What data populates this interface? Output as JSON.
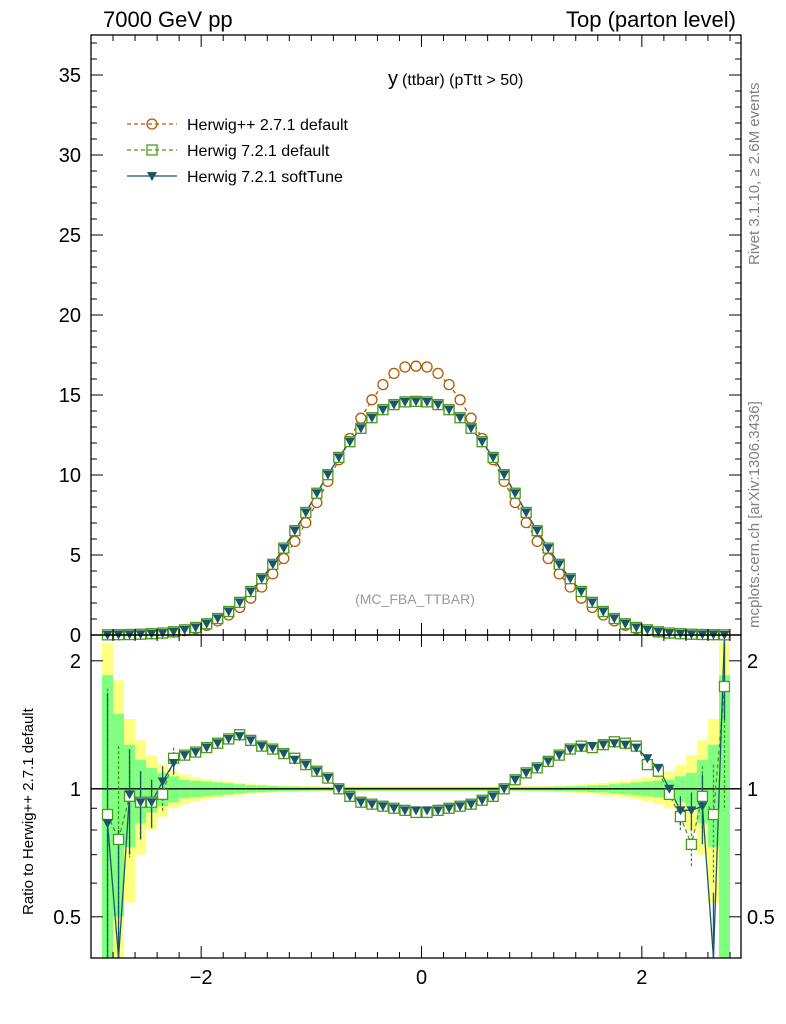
{
  "header": {
    "left": "7000 GeV pp",
    "right": "Top (parton level)"
  },
  "side_labels": {
    "rivet": "Rivet 3.1.10, ≥ 2.6M events",
    "mcplots": "mcplots.cern.ch [arXiv:1306.3436]"
  },
  "chart_data": {
    "type": "line",
    "title_main": "y",
    "title_sub": "(ttbar)  (pTtt > 50)",
    "watermark": "(MC_FBA_TTBAR)",
    "ratio_ylabel": "Ratio to Herwig++ 2.7.1 default",
    "xlim": [
      -3.0,
      2.9
    ],
    "ylim": [
      0,
      37.5
    ],
    "ratio_ylim": [
      0.4,
      2.3
    ],
    "x_ticks": [
      "−2",
      "0",
      "2"
    ],
    "y_ticks": [
      "0",
      "5",
      "10",
      "15",
      "20",
      "25",
      "30",
      "35"
    ],
    "ratio_ticks": [
      "0.5",
      "1",
      "2"
    ],
    "x": [
      -2.85,
      -2.75,
      -2.65,
      -2.55,
      -2.45,
      -2.35,
      -2.25,
      -2.15,
      -2.05,
      -1.95,
      -1.85,
      -1.75,
      -1.65,
      -1.55,
      -1.45,
      -1.35,
      -1.25,
      -1.15,
      -1.05,
      -0.95,
      -0.85,
      -0.75,
      -0.65,
      -0.55,
      -0.45,
      -0.35,
      -0.25,
      -0.15,
      -0.05,
      0.05,
      0.15,
      0.25,
      0.35,
      0.45,
      0.55,
      0.65,
      0.75,
      0.85,
      0.95,
      1.05,
      1.15,
      1.25,
      1.35,
      1.45,
      1.55,
      1.65,
      1.75,
      1.85,
      1.95,
      2.05,
      2.15,
      2.25,
      2.35,
      2.45,
      2.55,
      2.65,
      2.75
    ],
    "series": [
      {
        "name": "Herwig++ 2.7.1 default",
        "color": "#b35900",
        "marker": "circle-open",
        "dashed": true,
        "values": [
          0.01,
          0.02,
          0.03,
          0.05,
          0.08,
          0.12,
          0.18,
          0.27,
          0.4,
          0.6,
          0.88,
          1.25,
          1.72,
          2.3,
          3.0,
          3.82,
          4.78,
          5.85,
          7.02,
          8.28,
          9.6,
          10.95,
          12.28,
          13.55,
          14.7,
          15.65,
          16.35,
          16.75,
          16.8,
          16.75,
          16.35,
          15.65,
          14.7,
          13.55,
          12.28,
          10.95,
          9.6,
          8.28,
          7.02,
          5.85,
          4.78,
          3.82,
          3.0,
          2.3,
          1.72,
          1.25,
          0.88,
          0.6,
          0.4,
          0.27,
          0.18,
          0.12,
          0.08,
          0.05,
          0.03,
          0.02,
          0.01
        ]
      },
      {
        "name": "Herwig 7.2.1 default",
        "color": "#4a9a1a",
        "marker": "square-open",
        "dashed": true,
        "values": [
          0.01,
          0.02,
          0.03,
          0.05,
          0.08,
          0.12,
          0.2,
          0.32,
          0.47,
          0.7,
          1.03,
          1.47,
          2.04,
          2.72,
          3.52,
          4.42,
          5.43,
          6.52,
          7.66,
          8.86,
          10.02,
          11.1,
          12.08,
          12.92,
          13.58,
          14.08,
          14.4,
          14.57,
          14.6,
          14.57,
          14.4,
          14.08,
          13.58,
          12.92,
          12.08,
          11.1,
          10.02,
          8.86,
          7.66,
          6.52,
          5.43,
          4.42,
          3.52,
          2.72,
          2.04,
          1.47,
          1.03,
          0.7,
          0.47,
          0.32,
          0.2,
          0.12,
          0.08,
          0.05,
          0.03,
          0.02,
          0.01
        ]
      },
      {
        "name": "Herwig 7.2.1 softTune",
        "color": "#1b5667",
        "marker": "triangle-down-filled",
        "dashed": false,
        "values": [
          0.01,
          0.02,
          0.03,
          0.05,
          0.08,
          0.12,
          0.2,
          0.32,
          0.47,
          0.7,
          1.03,
          1.47,
          2.04,
          2.72,
          3.52,
          4.42,
          5.43,
          6.52,
          7.66,
          8.86,
          10.02,
          11.1,
          12.08,
          12.92,
          13.58,
          14.08,
          14.4,
          14.57,
          14.6,
          14.57,
          14.4,
          14.08,
          13.58,
          12.92,
          12.08,
          11.1,
          10.02,
          8.86,
          7.66,
          6.52,
          5.43,
          4.42,
          3.52,
          2.72,
          2.04,
          1.47,
          1.03,
          0.7,
          0.47,
          0.32,
          0.2,
          0.12,
          0.08,
          0.05,
          0.03,
          0.02,
          0.01
        ]
      }
    ],
    "ratio": {
      "h7_default": [
        0.87,
        0.76,
        0.96,
        0.93,
        0.93,
        0.97,
        1.18,
        1.2,
        1.22,
        1.25,
        1.28,
        1.31,
        1.34,
        1.3,
        1.26,
        1.24,
        1.21,
        1.18,
        1.14,
        1.1,
        1.06,
        1.0,
        0.96,
        0.93,
        0.92,
        0.91,
        0.9,
        0.89,
        0.88,
        0.88,
        0.89,
        0.9,
        0.91,
        0.92,
        0.94,
        0.96,
        1.0,
        1.05,
        1.09,
        1.12,
        1.16,
        1.2,
        1.24,
        1.26,
        1.25,
        1.27,
        1.29,
        1.28,
        1.26,
        1.14,
        1.1,
        0.97,
        0.86,
        0.74,
        0.96,
        0.87,
        1.74
      ],
      "h7_softtune": [
        0.83,
        0.3,
        0.97,
        0.93,
        0.93,
        1.04,
        1.15,
        1.2,
        1.22,
        1.25,
        1.28,
        1.31,
        1.33,
        1.3,
        1.26,
        1.24,
        1.21,
        1.17,
        1.14,
        1.1,
        1.06,
        1.0,
        0.96,
        0.93,
        0.92,
        0.91,
        0.9,
        0.89,
        0.89,
        0.89,
        0.89,
        0.9,
        0.91,
        0.92,
        0.94,
        0.96,
        1.0,
        1.05,
        1.09,
        1.12,
        1.16,
        1.2,
        1.24,
        1.25,
        1.26,
        1.27,
        1.28,
        1.27,
        1.25,
        1.18,
        1.12,
        1.0,
        0.89,
        0.89,
        0.91,
        0.3,
        2.3
      ],
      "band_stat": [
        0.85,
        0.5,
        0.27,
        0.17,
        0.12,
        0.09,
        0.07,
        0.05,
        0.045,
        0.04,
        0.035,
        0.03,
        0.025,
        0.02,
        0.018,
        0.015,
        0.013,
        0.012,
        0.011,
        0.01,
        0.01,
        0.01,
        0.01,
        0.01,
        0.01,
        0.01,
        0.01,
        0.01,
        0.01,
        0.01,
        0.01,
        0.01,
        0.01,
        0.01,
        0.01,
        0.01,
        0.01,
        0.01,
        0.01,
        0.01,
        0.011,
        0.012,
        0.013,
        0.015,
        0.018,
        0.02,
        0.025,
        0.03,
        0.035,
        0.04,
        0.045,
        0.05,
        0.07,
        0.09,
        0.17,
        0.27,
        0.85
      ],
      "band_total": [
        1.2,
        0.8,
        0.46,
        0.3,
        0.2,
        0.14,
        0.1,
        0.08,
        0.065,
        0.055,
        0.045,
        0.04,
        0.033,
        0.028,
        0.024,
        0.02,
        0.018,
        0.016,
        0.015,
        0.014,
        0.013,
        0.013,
        0.013,
        0.013,
        0.013,
        0.013,
        0.013,
        0.013,
        0.013,
        0.013,
        0.013,
        0.013,
        0.013,
        0.013,
        0.013,
        0.013,
        0.013,
        0.013,
        0.014,
        0.015,
        0.016,
        0.018,
        0.02,
        0.024,
        0.028,
        0.033,
        0.04,
        0.045,
        0.055,
        0.065,
        0.08,
        0.1,
        0.14,
        0.2,
        0.3,
        0.46,
        1.2
      ]
    }
  }
}
